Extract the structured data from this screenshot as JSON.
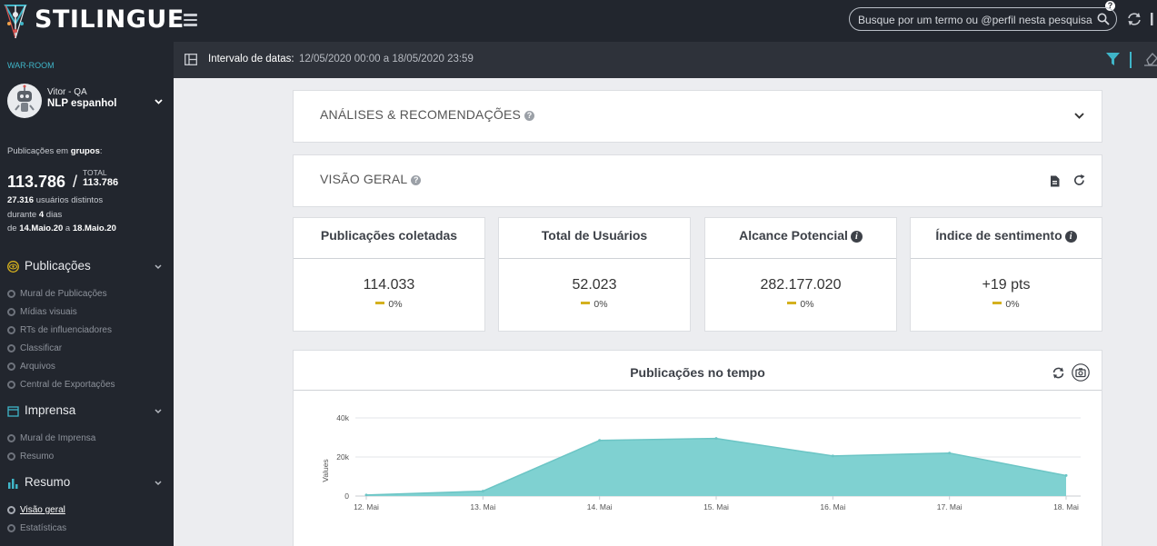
{
  "header": {
    "logo_text": "STILINGUE",
    "search_placeholder": "Busque por um termo ou @perfil nesta pesquisa",
    "help_badge": "?"
  },
  "sidebar": {
    "war_room": "WAR-ROOM",
    "profile_user": "Vitor - QA",
    "profile_name": "NLP espanhol",
    "pubs_prefix": "Publicações em ",
    "pubs_bold": "grupos",
    "pubs_suffix": ":",
    "count": "113.786",
    "slash": "/",
    "total_label": "TOTAL",
    "total_count": "113.786",
    "users_count": "27.316",
    "users_text": " usuários distintos",
    "during_prefix": "durante ",
    "days": "4",
    "days_suffix": " dias",
    "from_prefix": "de ",
    "date_from": "14.Maio.20",
    "to_text": " a ",
    "date_to": "18.Maio.20",
    "sections": [
      {
        "label": "Publicações",
        "items": [
          "Mural de Publicações",
          "Mídias visuais",
          "RTs de influenciadores",
          "Classificar",
          "Arquivos",
          "Central de Exportações"
        ]
      },
      {
        "label": "Imprensa",
        "items": [
          "Mural de Imprensa",
          "Resumo"
        ]
      },
      {
        "label": "Resumo",
        "items": [
          "Visão geral",
          "Estatísticas"
        ]
      }
    ]
  },
  "datebar": {
    "label": "Intervalo de datas:",
    "value": "12/05/2020 00:00 a 18/05/2020 23:59"
  },
  "analysis": {
    "title": "ANÁLISES & RECOMENDAÇÕES"
  },
  "overview": {
    "title": "VISÃO GERAL"
  },
  "kpis": [
    {
      "title": "Publicações coletadas",
      "value": "114.033",
      "delta": "0%"
    },
    {
      "title": "Total de Usuários",
      "value": "52.023",
      "delta": "0%"
    },
    {
      "title": "Alcance Potencial",
      "value": "282.177.020",
      "delta": "0%"
    },
    {
      "title": "Índice de sentimento",
      "value": "+19 pts",
      "delta": "0%"
    }
  ],
  "chart_data": {
    "type": "area",
    "title": "Publicações no tempo",
    "ylabel": "Values",
    "xlabel": "",
    "categories": [
      "12. Mai",
      "13. Mai",
      "14. Mai",
      "15. Mai",
      "16. Mai",
      "17. Mai",
      "18. Mai"
    ],
    "series": [
      {
        "values": [
          500,
          2500,
          28500,
          29500,
          20500,
          22000,
          10500
        ]
      }
    ],
    "ylim": [
      0,
      40000
    ],
    "yticks": [
      "0",
      "20k",
      "40k"
    ],
    "color": "#7fd1d1",
    "grid": true,
    "legend": "none"
  },
  "colors": {
    "accent": "#3fb5c8",
    "sidebar_bg": "#22262e",
    "delta_dash": "#d4b01e"
  }
}
